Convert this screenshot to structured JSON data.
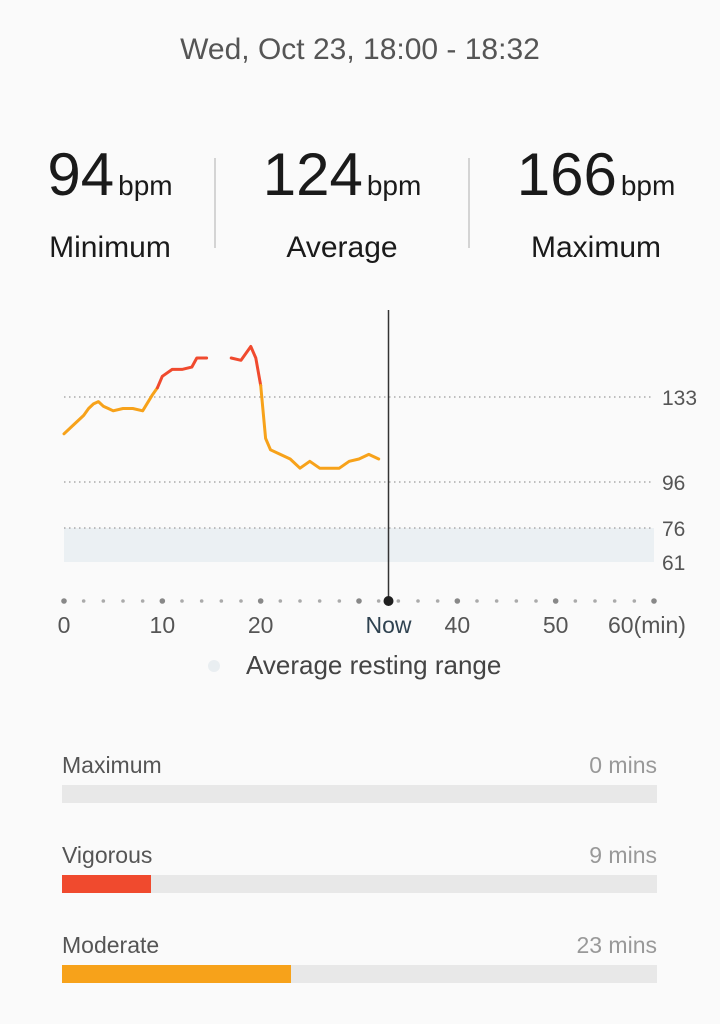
{
  "header": {
    "date_range": "Wed, Oct 23, 18:00 - 18:32"
  },
  "stats": {
    "minimum": {
      "value": "94",
      "unit": "bpm",
      "label": "Minimum"
    },
    "average": {
      "value": "124",
      "unit": "bpm",
      "label": "Average"
    },
    "maximum": {
      "value": "166",
      "unit": "bpm",
      "label": "Maximum"
    }
  },
  "legend": {
    "resting_label": "Average resting range"
  },
  "chart_data": {
    "type": "line",
    "xlim": [
      0,
      60
    ],
    "x_unit_label": "60(min)",
    "x_ticks": [
      "0",
      "10",
      "20",
      "Now",
      "40",
      "50",
      "60(min)"
    ],
    "x_tick_values": [
      0,
      10,
      20,
      33,
      40,
      50,
      60
    ],
    "now_x": 33,
    "y_ticks": [
      133,
      96,
      76,
      61
    ],
    "resting_range": [
      61,
      76
    ],
    "colors": {
      "vigorous": "#f04a2e",
      "moderate": "#f7a21a",
      "resting": "#ebf0f3"
    },
    "series": [
      {
        "color_zone": "moderate",
        "x": [
          0,
          1,
          2,
          2.5,
          3,
          3.5,
          4,
          4.5,
          5,
          6,
          7,
          8,
          9,
          9.5
        ],
        "y": [
          117,
          121,
          125,
          128,
          130,
          131,
          129,
          128,
          127,
          128,
          128,
          127,
          134,
          137
        ]
      },
      {
        "color_zone": "vigorous",
        "x": [
          9.5,
          10,
          11,
          12,
          13,
          13.5,
          14.5
        ],
        "y": [
          137,
          142,
          145,
          145,
          146,
          150,
          150
        ]
      },
      {
        "color_zone": "vigorous",
        "x": [
          17,
          18,
          18.5,
          19,
          19.5,
          20
        ],
        "y": [
          150,
          149,
          152,
          155,
          150,
          138
        ]
      },
      {
        "color_zone": "moderate",
        "x": [
          20,
          20.5,
          21,
          22,
          23,
          24,
          25,
          26,
          27,
          28,
          29,
          30,
          31,
          32
        ],
        "y": [
          138,
          115,
          110,
          108,
          106,
          102,
          105,
          102,
          102,
          102,
          105,
          106,
          108,
          106
        ]
      }
    ]
  },
  "zones": [
    {
      "name": "Maximum",
      "mins": "0 mins",
      "fraction": 0,
      "color": "#f04a2e"
    },
    {
      "name": "Vigorous",
      "mins": "9 mins",
      "fraction": 0.15,
      "color": "#f04a2e"
    },
    {
      "name": "Moderate",
      "mins": "23 mins",
      "fraction": 0.385,
      "color": "#f7a21a"
    }
  ]
}
